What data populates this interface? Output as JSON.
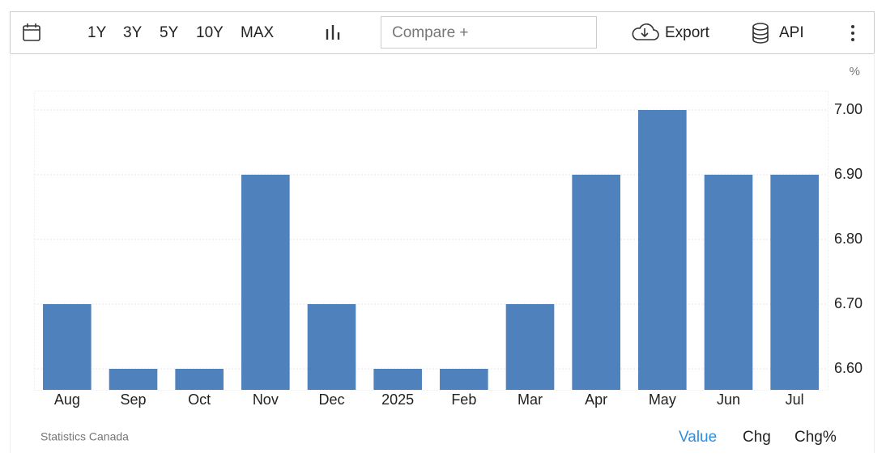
{
  "toolbar": {
    "ranges": [
      "1Y",
      "3Y",
      "5Y",
      "10Y",
      "MAX"
    ],
    "compare_placeholder": "Compare +",
    "export": "Export",
    "api": "API"
  },
  "chart_data": {
    "type": "bar",
    "y_unit": "%",
    "categories": [
      "Aug",
      "Sep",
      "Oct",
      "Nov",
      "Dec",
      "2025",
      "Feb",
      "Mar",
      "Apr",
      "May",
      "Jun",
      "Jul"
    ],
    "values": [
      6.7,
      6.6,
      6.6,
      6.9,
      6.7,
      6.6,
      6.6,
      6.7,
      6.9,
      7.0,
      6.9,
      6.9
    ],
    "color": "#4f81bd",
    "ylim": [
      6.5675,
      7.03
    ],
    "yticks": [
      {
        "value": 6.6,
        "label": "6.60"
      },
      {
        "value": 6.7,
        "label": "6.70"
      },
      {
        "value": 6.8,
        "label": "6.80"
      },
      {
        "value": 6.9,
        "label": "6.90"
      },
      {
        "value": 7.0,
        "label": "7.00"
      }
    ],
    "grid": true
  },
  "footer": {
    "source": "Statistics Canada",
    "tabs": [
      "Value",
      "Chg",
      "Chg%"
    ]
  }
}
